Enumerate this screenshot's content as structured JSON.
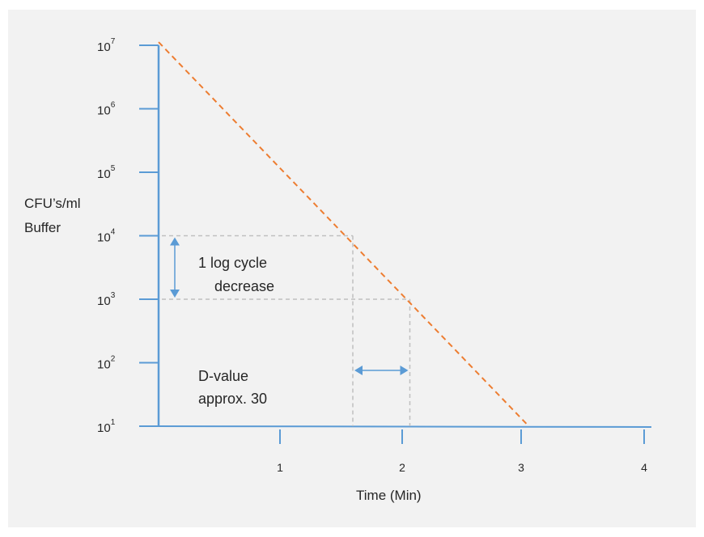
{
  "chart_data": {
    "type": "line",
    "title": "",
    "xlabel": "Time (Min)",
    "ylabel_lines": [
      "CFU’s/ml",
      "Buffer"
    ],
    "x_ticks": [
      1,
      2,
      3,
      4
    ],
    "x_tick_labels": [
      "1",
      "2",
      "3",
      "4"
    ],
    "y_scale": "log",
    "y_tick_exponents": [
      1,
      2,
      3,
      4,
      5,
      6,
      7
    ],
    "y_tick_base": "10",
    "xlim": [
      0,
      4.2
    ],
    "ylim_exponent": [
      1,
      7
    ],
    "series": [
      {
        "x": [
          0,
          3.05
        ],
        "y_exponent": [
          7.05,
          1.0
        ],
        "style": "dashed",
        "color": "#ed7d31"
      }
    ],
    "guides": {
      "y_levels_exponent": [
        4,
        3
      ],
      "x_levels": [
        1.6,
        2.07
      ],
      "color": "#bfbfbf"
    },
    "annotations": {
      "log_cycle": [
        "1 log cycle",
        "decrease"
      ],
      "d_value": [
        "D-value",
        "approx. 30"
      ]
    },
    "axis_color": "#5b9bd5",
    "arrow_color": "#5b9bd5",
    "grid": false,
    "legend": "none"
  }
}
